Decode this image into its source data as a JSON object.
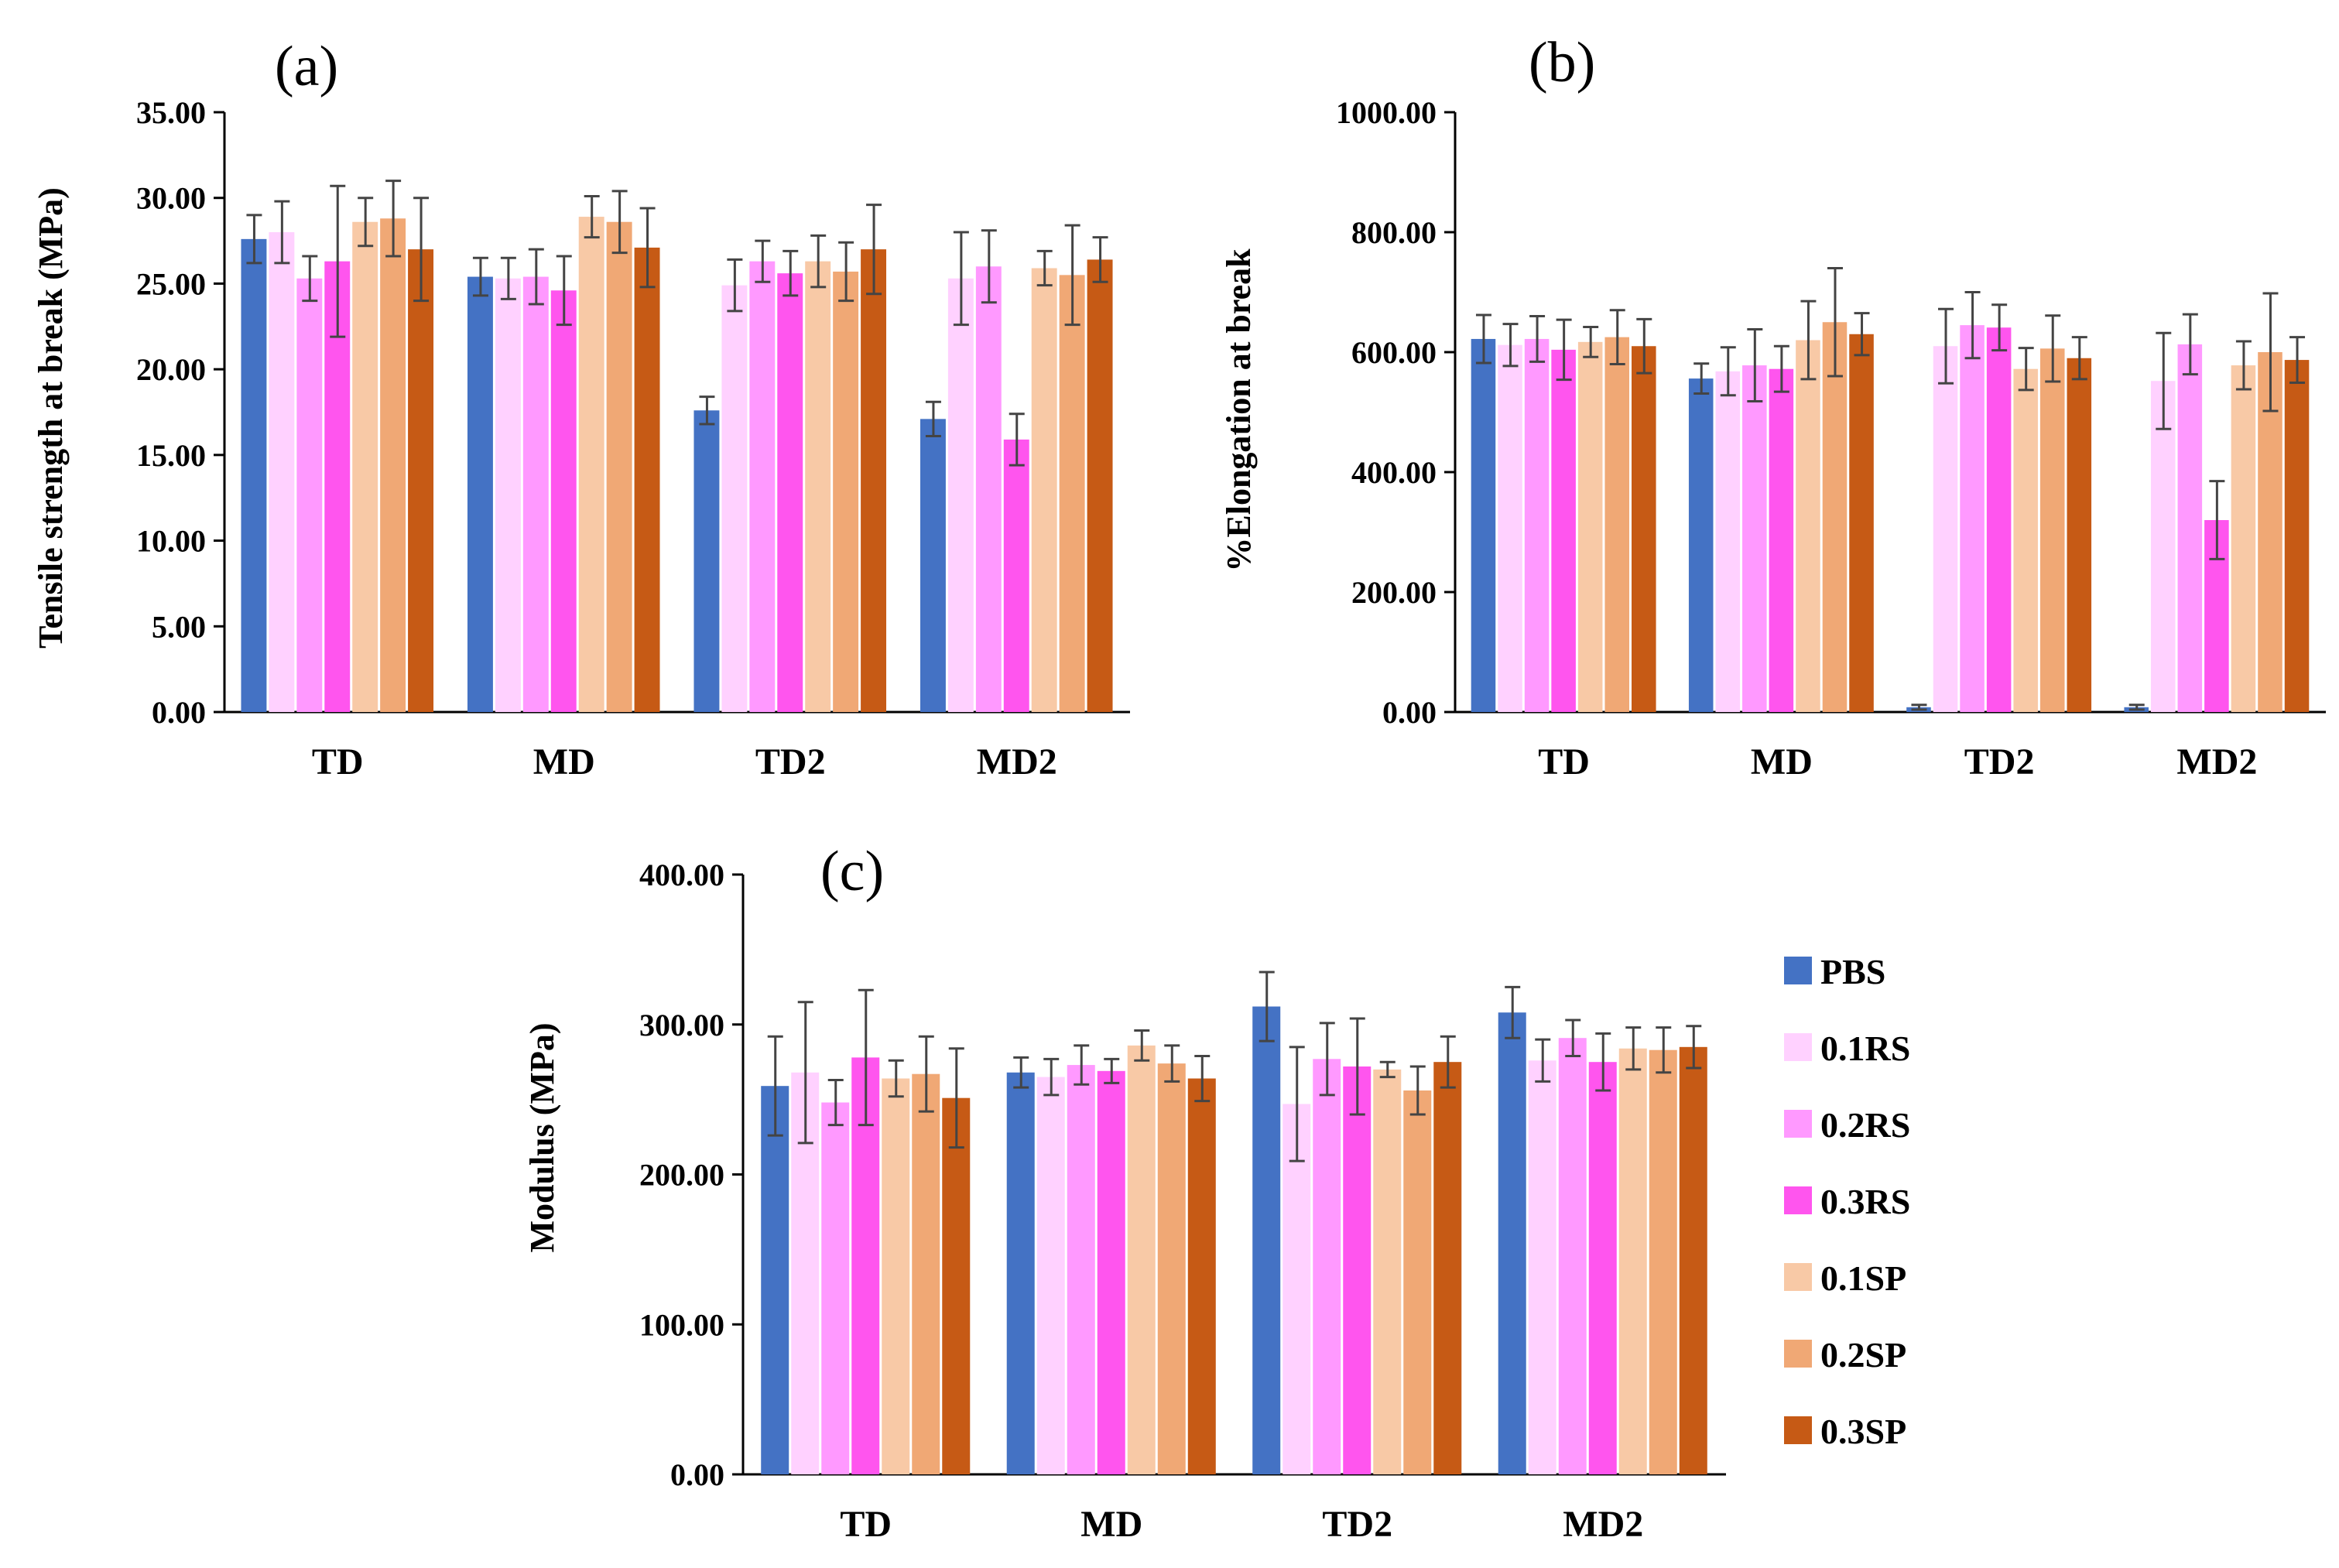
{
  "legend": [
    "PBS",
    "0.1RS",
    "0.2RS",
    "0.3RS",
    "0.1SP",
    "0.2SP",
    "0.3SP"
  ],
  "colors": [
    "#4472C4",
    "#FFD1FF",
    "#FF99FF",
    "#FF55EE",
    "#F8C9A6",
    "#F0A875",
    "#C65A15"
  ],
  "chart_data": [
    {
      "type": "bar",
      "panel_label": "(a)",
      "title": "",
      "xlabel": "",
      "ylabel": "Tensile strength at break (MPa)",
      "ylim": [
        0,
        35
      ],
      "yticks": [
        "0.00",
        "5.00",
        "10.00",
        "15.00",
        "20.00",
        "25.00",
        "30.00",
        "35.00"
      ],
      "categories": [
        "TD",
        "MD",
        "TD2",
        "MD2"
      ],
      "series": [
        {
          "name": "PBS",
          "values": [
            27.6,
            25.4,
            17.6,
            17.1
          ],
          "errors": [
            1.4,
            1.1,
            0.8,
            1.0
          ]
        },
        {
          "name": "0.1RS",
          "values": [
            28.0,
            25.3,
            24.9,
            25.3
          ],
          "errors": [
            1.8,
            1.2,
            1.5,
            2.7
          ]
        },
        {
          "name": "0.2RS",
          "values": [
            25.3,
            25.4,
            26.3,
            26.0
          ],
          "errors": [
            1.3,
            1.6,
            1.2,
            2.1
          ]
        },
        {
          "name": "0.3RS",
          "values": [
            26.3,
            24.6,
            25.6,
            15.9
          ],
          "errors": [
            4.4,
            2.0,
            1.3,
            1.5
          ]
        },
        {
          "name": "0.1SP",
          "values": [
            28.6,
            28.9,
            26.3,
            25.9
          ],
          "errors": [
            1.4,
            1.2,
            1.5,
            1.0
          ]
        },
        {
          "name": "0.2SP",
          "values": [
            28.8,
            28.6,
            25.7,
            25.5
          ],
          "errors": [
            2.2,
            1.8,
            1.7,
            2.9
          ]
        },
        {
          "name": "0.3SP",
          "values": [
            27.0,
            27.1,
            27.0,
            26.4
          ],
          "errors": [
            3.0,
            2.3,
            2.6,
            1.3
          ]
        }
      ]
    },
    {
      "type": "bar",
      "panel_label": "(b)",
      "title": "",
      "xlabel": "",
      "ylabel": "%Elongation at break",
      "ylim": [
        0,
        1000
      ],
      "yticks": [
        "0.00",
        "200.00",
        "400.00",
        "600.00",
        "800.00",
        "1000.00"
      ],
      "categories": [
        "TD",
        "MD",
        "TD2",
        "MD2"
      ],
      "series": [
        {
          "name": "PBS",
          "values": [
            622,
            556,
            8,
            8
          ],
          "errors": [
            40,
            25,
            4,
            4
          ]
        },
        {
          "name": "0.1RS",
          "values": [
            612,
            568,
            610,
            552
          ],
          "errors": [
            35,
            40,
            62,
            80
          ]
        },
        {
          "name": "0.2RS",
          "values": [
            622,
            578,
            645,
            613
          ],
          "errors": [
            38,
            60,
            55,
            50
          ]
        },
        {
          "name": "0.3RS",
          "values": [
            604,
            572,
            641,
            320
          ],
          "errors": [
            50,
            38,
            38,
            65
          ]
        },
        {
          "name": "0.1SP",
          "values": [
            617,
            620,
            572,
            578
          ],
          "errors": [
            25,
            65,
            35,
            40
          ]
        },
        {
          "name": "0.2SP",
          "values": [
            625,
            650,
            606,
            600
          ],
          "errors": [
            45,
            90,
            55,
            98
          ]
        },
        {
          "name": "0.3SP",
          "values": [
            610,
            630,
            590,
            587
          ],
          "errors": [
            45,
            35,
            35,
            38
          ]
        }
      ]
    },
    {
      "type": "bar",
      "panel_label": "(c)",
      "title": "",
      "xlabel": "",
      "ylabel": "Modulus (MPa)",
      "ylim": [
        0,
        400
      ],
      "yticks": [
        "0.00",
        "100.00",
        "200.00",
        "300.00",
        "400.00"
      ],
      "categories": [
        "TD",
        "MD",
        "TD2",
        "MD2"
      ],
      "series": [
        {
          "name": "PBS",
          "values": [
            259,
            268,
            312,
            308
          ],
          "errors": [
            33,
            10,
            23,
            17
          ]
        },
        {
          "name": "0.1RS",
          "values": [
            268,
            265,
            247,
            276
          ],
          "errors": [
            47,
            12,
            38,
            14
          ]
        },
        {
          "name": "0.2RS",
          "values": [
            248,
            273,
            277,
            291
          ],
          "errors": [
            15,
            13,
            24,
            12
          ]
        },
        {
          "name": "0.3RS",
          "values": [
            278,
            269,
            272,
            275
          ],
          "errors": [
            45,
            8,
            32,
            19
          ]
        },
        {
          "name": "0.1SP",
          "values": [
            264,
            286,
            270,
            284
          ],
          "errors": [
            12,
            10,
            5,
            14
          ]
        },
        {
          "name": "0.2SP",
          "values": [
            267,
            274,
            256,
            283
          ],
          "errors": [
            25,
            12,
            16,
            15
          ]
        },
        {
          "name": "0.3SP",
          "values": [
            251,
            264,
            275,
            285
          ],
          "errors": [
            33,
            15,
            17,
            14
          ]
        }
      ]
    }
  ]
}
